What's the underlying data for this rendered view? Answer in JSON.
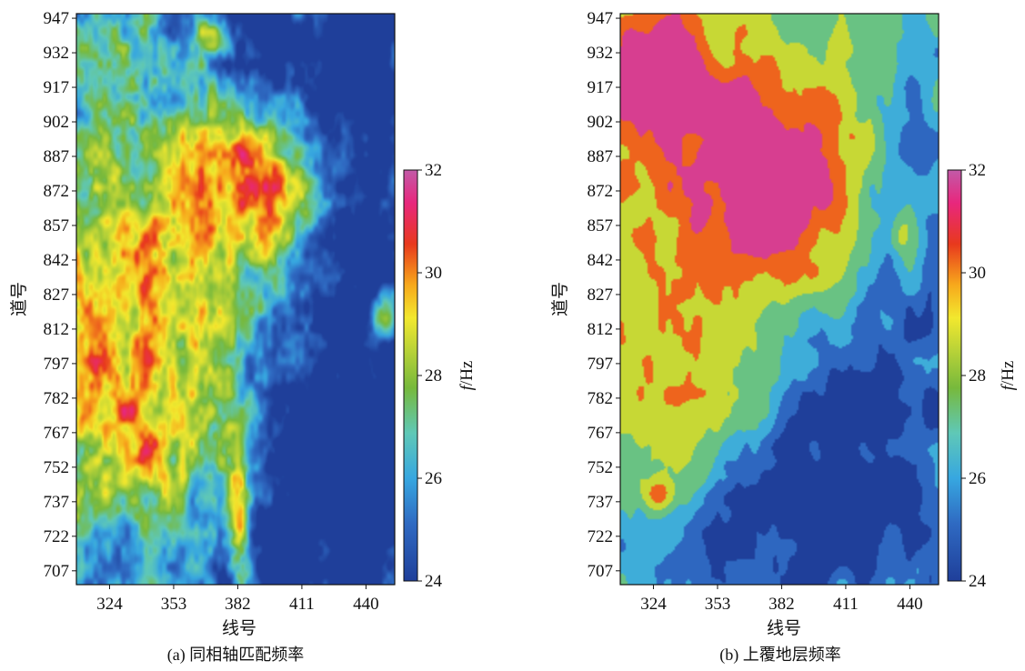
{
  "chart_data": [
    {
      "type": "heatmap",
      "caption": "(a) 同相轴匹配频率",
      "xlabel": "线号",
      "ylabel": "道号",
      "x_ticks": [
        324,
        353,
        382,
        411,
        440
      ],
      "y_ticks": [
        947,
        932,
        917,
        902,
        887,
        872,
        857,
        842,
        827,
        812,
        797,
        782,
        767,
        752,
        737,
        722,
        707
      ],
      "xlim": [
        309,
        453
      ],
      "ylim": [
        701,
        949
      ],
      "colorbar": {
        "label_italic": "f",
        "label_unit": "/Hz",
        "ticks": [
          32,
          30,
          28,
          26,
          24
        ],
        "range": [
          24,
          32
        ]
      },
      "style": "smooth",
      "seed": 7,
      "background": 26.5,
      "features": [
        {
          "x": 405,
          "y": 930,
          "sx": 45,
          "sy": 30,
          "v": -3.0
        },
        {
          "x": 440,
          "y": 860,
          "sx": 18,
          "sy": 110,
          "v": -2.5
        },
        {
          "x": 425,
          "y": 740,
          "sx": 40,
          "sy": 80,
          "v": -2.6
        },
        {
          "x": 398,
          "y": 720,
          "sx": 22,
          "sy": 40,
          "v": -1.6
        },
        {
          "x": 325,
          "y": 725,
          "sx": 20,
          "sy": 30,
          "v": -0.8
        },
        {
          "x": 322,
          "y": 808,
          "sx": 24,
          "sy": 32,
          "v": 3.4
        },
        {
          "x": 345,
          "y": 752,
          "sx": 30,
          "sy": 22,
          "v": 2.6
        },
        {
          "x": 375,
          "y": 855,
          "sx": 20,
          "sy": 35,
          "v": 2.6
        },
        {
          "x": 398,
          "y": 880,
          "sx": 24,
          "sy": 20,
          "v": 3.3
        },
        {
          "x": 350,
          "y": 910,
          "sx": 30,
          "sy": 25,
          "v": 1.4
        },
        {
          "x": 330,
          "y": 870,
          "sx": 18,
          "sy": 22,
          "v": 1.0
        },
        {
          "x": 346,
          "y": 820,
          "sx": 20,
          "sy": 25,
          "v": 0.6
        },
        {
          "x": 380,
          "y": 775,
          "sx": 12,
          "sy": 20,
          "v": 0.8
        },
        {
          "x": 383,
          "y": 732,
          "sx": 4,
          "sy": 22,
          "v": 5.0
        },
        {
          "x": 449,
          "y": 818,
          "sx": 4,
          "sy": 8,
          "v": 4.8
        },
        {
          "x": 372,
          "y": 940,
          "sx": 5,
          "sy": 5,
          "v": 4.0
        }
      ]
    },
    {
      "type": "heatmap",
      "caption": "(b) 上覆地层频率",
      "xlabel": "线号",
      "ylabel": "道号",
      "x_ticks": [
        324,
        353,
        382,
        411,
        440
      ],
      "y_ticks": [
        947,
        932,
        917,
        902,
        887,
        872,
        857,
        842,
        827,
        812,
        797,
        782,
        767,
        752,
        737,
        722,
        707
      ],
      "xlim": [
        309,
        453
      ],
      "ylim": [
        701,
        949
      ],
      "colorbar": {
        "label_italic": "f",
        "label_unit": "/Hz",
        "ticks": [
          32,
          30,
          28,
          26,
          24
        ],
        "range": [
          24,
          32
        ]
      },
      "style": "quantized",
      "seed": 19,
      "background": 27.2,
      "features": [
        {
          "x": 320,
          "y": 930,
          "sx": 20,
          "sy": 22,
          "v": 4.0
        },
        {
          "x": 385,
          "y": 862,
          "sx": 22,
          "sy": 28,
          "v": 4.4
        },
        {
          "x": 330,
          "y": 850,
          "sx": 35,
          "sy": 70,
          "v": 2.4
        },
        {
          "x": 370,
          "y": 905,
          "sx": 40,
          "sy": 30,
          "v": 2.6
        },
        {
          "x": 340,
          "y": 790,
          "sx": 30,
          "sy": 25,
          "v": 1.4
        },
        {
          "x": 420,
          "y": 760,
          "sx": 45,
          "sy": 55,
          "v": -2.6
        },
        {
          "x": 445,
          "y": 880,
          "sx": 12,
          "sy": 45,
          "v": -1.8
        },
        {
          "x": 340,
          "y": 715,
          "sx": 40,
          "sy": 20,
          "v": -1.6
        },
        {
          "x": 395,
          "y": 740,
          "sx": 30,
          "sy": 35,
          "v": -1.3
        },
        {
          "x": 325,
          "y": 740,
          "sx": 5,
          "sy": 5,
          "v": 4.0
        },
        {
          "x": 437,
          "y": 852,
          "sx": 5,
          "sy": 8,
          "v": 3.0
        }
      ]
    }
  ]
}
